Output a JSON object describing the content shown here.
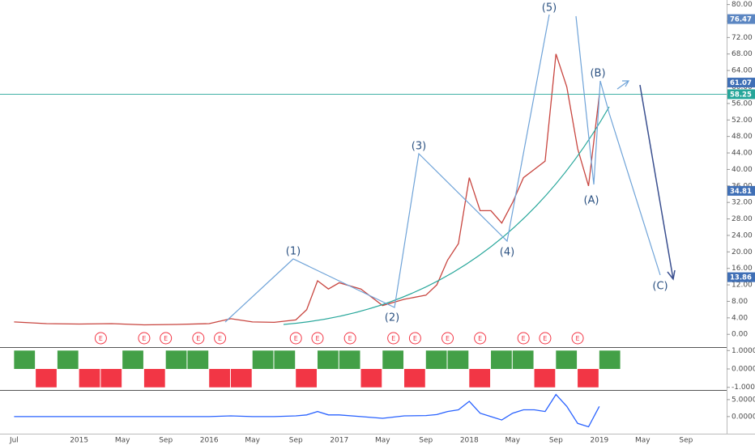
{
  "chart_data": [
    {
      "type": "line",
      "x": [
        "2014-07",
        "2014-10",
        "2015-01",
        "2015-04",
        "2015-07",
        "2015-10",
        "2016-01",
        "2016-03",
        "2016-05",
        "2016-07",
        "2016-09",
        "2016-10",
        "2016-11",
        "2016-12",
        "2017-01",
        "2017-03",
        "2017-05",
        "2017-07",
        "2017-09",
        "2017-10",
        "2017-11",
        "2017-12",
        "2018-01",
        "2018-02",
        "2018-03",
        "2018-04",
        "2018-05",
        "2018-06",
        "2018-07",
        "2018-08",
        "2018-09",
        "2018-10",
        "2018-11",
        "2018-12",
        "2019-01"
      ],
      "values": [
        3.0,
        2.6,
        2.5,
        2.6,
        2.3,
        2.4,
        2.6,
        3.8,
        3.0,
        2.9,
        3.5,
        6.0,
        13.0,
        11.0,
        12.5,
        11.0,
        7.0,
        8.5,
        9.5,
        12.0,
        18.0,
        22.0,
        38.0,
        30.0,
        30.0,
        27.0,
        32.0,
        38.0,
        40.0,
        42.0,
        68.0,
        60.0,
        45.0,
        36.0,
        58.0
      ],
      "color": "#c8453f",
      "xlim": [
        "2014-06",
        "2019-12"
      ],
      "ylim": [
        -2.9,
        81.1
      ],
      "yticks": [
        {
          "value": 0,
          "label": "0.00"
        },
        {
          "value": 4,
          "label": "4.00"
        },
        {
          "value": 8,
          "label": "8.00"
        },
        {
          "value": 12,
          "label": "12.00"
        },
        {
          "value": 16,
          "label": "16.00"
        },
        {
          "value": 20,
          "label": "20.00"
        },
        {
          "value": 24,
          "label": "24.00"
        },
        {
          "value": 28,
          "label": "28.00"
        },
        {
          "value": 32,
          "label": "32.00"
        },
        {
          "value": 36,
          "label": "36.00"
        },
        {
          "value": 40,
          "label": "40.00"
        },
        {
          "value": 44,
          "label": "44.00"
        },
        {
          "value": 48,
          "label": "48.00"
        },
        {
          "value": 52,
          "label": "52.00"
        },
        {
          "value": 56,
          "label": "56.00"
        },
        {
          "value": 60,
          "label": "60.00"
        },
        {
          "value": 64,
          "label": "64.00"
        },
        {
          "value": 68,
          "label": "68.00"
        },
        {
          "value": 72,
          "label": "72.00"
        },
        {
          "value": 76,
          "label": "76.00"
        },
        {
          "value": 80,
          "label": "80.00"
        }
      ],
      "xticks": [
        {
          "value": "2014-07",
          "label": "Jul"
        },
        {
          "value": "2015-01",
          "label": "2015"
        },
        {
          "value": "2015-05",
          "label": "May"
        },
        {
          "value": "2015-09",
          "label": "Sep"
        },
        {
          "value": "2016-01",
          "label": "2016"
        },
        {
          "value": "2016-05",
          "label": "May"
        },
        {
          "value": "2016-09",
          "label": "Sep"
        },
        {
          "value": "2017-01",
          "label": "2017"
        },
        {
          "value": "2017-05",
          "label": "May"
        },
        {
          "value": "2017-09",
          "label": "Sep"
        },
        {
          "value": "2018-01",
          "label": "2018"
        },
        {
          "value": "2018-05",
          "label": "May"
        },
        {
          "value": "2018-09",
          "label": "Sep"
        },
        {
          "value": "2019-01",
          "label": "2019"
        },
        {
          "value": "2019-05",
          "label": "May"
        },
        {
          "value": "2019-09",
          "label": "Sep"
        }
      ],
      "hline": 58.25,
      "price_tags": [
        {
          "value": 76.47,
          "color": "#5b86c2"
        },
        {
          "value": 61.07,
          "color": "#3f6fb6"
        },
        {
          "value": 58.25,
          "color": "#26a69a"
        },
        {
          "value": 34.81,
          "color": "#3f6fb6"
        },
        {
          "value": 13.86,
          "color": "#3f6fb6"
        }
      ],
      "annotations": [
        "(1)",
        "(2)",
        "(3)",
        "(4)",
        "(5)",
        "(A)",
        "(B)",
        "(C)"
      ],
      "earnings_label": "E",
      "earnings_dates": [
        "2015-03",
        "2015-07",
        "2015-09",
        "2015-12",
        "2016-02",
        "2016-09",
        "2016-11",
        "2017-02",
        "2017-06",
        "2017-08",
        "2017-11",
        "2018-02",
        "2018-06",
        "2018-08",
        "2018-11"
      ]
    },
    {
      "type": "bar",
      "x": [
        "2014-07",
        "2014-09",
        "2014-11",
        "2015-01",
        "2015-03",
        "2015-05",
        "2015-07",
        "2015-09",
        "2015-11",
        "2016-01",
        "2016-03",
        "2016-05",
        "2016-07",
        "2016-09",
        "2016-11",
        "2017-01",
        "2017-03",
        "2017-05",
        "2017-07",
        "2017-09",
        "2017-11",
        "2018-01",
        "2018-03",
        "2018-05",
        "2018-07",
        "2018-09",
        "2018-11",
        "2019-01"
      ],
      "values": [
        1,
        -1,
        1,
        -1,
        -1,
        1,
        -1,
        1,
        1,
        -1,
        -1,
        1,
        1,
        -1,
        1,
        1,
        -1,
        1,
        -1,
        1,
        1,
        -1,
        1,
        1,
        -1,
        1,
        -1,
        1
      ],
      "up_color": "#43a047",
      "down_color": "#f23645",
      "xlim": [
        "2014-06",
        "2019-12"
      ],
      "ylim": [
        -1.1,
        1.1
      ],
      "yticks": [
        {
          "value": 1,
          "label": "1.0000"
        },
        {
          "value": 0,
          "label": "0.0000"
        },
        {
          "value": -1,
          "label": "-1.0000"
        }
      ]
    },
    {
      "type": "line",
      "x": [
        "2014-07",
        "2014-10",
        "2015-01",
        "2015-04",
        "2015-07",
        "2015-10",
        "2016-01",
        "2016-03",
        "2016-05",
        "2016-07",
        "2016-09",
        "2016-10",
        "2016-11",
        "2016-12",
        "2017-01",
        "2017-03",
        "2017-05",
        "2017-07",
        "2017-09",
        "2017-10",
        "2017-11",
        "2017-12",
        "2018-01",
        "2018-02",
        "2018-03",
        "2018-04",
        "2018-05",
        "2018-06",
        "2018-07",
        "2018-08",
        "2018-09",
        "2018-10",
        "2018-11",
        "2018-12",
        "2019-01"
      ],
      "values": [
        0,
        0,
        0,
        0,
        0,
        0,
        0,
        0.2,
        0,
        0,
        0.2,
        0.5,
        1.5,
        0.5,
        0.5,
        0,
        -0.5,
        0.2,
        0.3,
        0.6,
        1.5,
        2,
        4.5,
        1,
        0,
        -1,
        1,
        2,
        2,
        1.5,
        6.5,
        3,
        -2,
        -3,
        3
      ],
      "color": "#2962ff",
      "xlim": [
        "2014-06",
        "2019-12"
      ],
      "ylim": [
        -4.8,
        7.6
      ],
      "yticks": [
        {
          "value": 5,
          "label": "5.0000"
        },
        {
          "value": 0,
          "label": "0.0000"
        }
      ]
    }
  ]
}
